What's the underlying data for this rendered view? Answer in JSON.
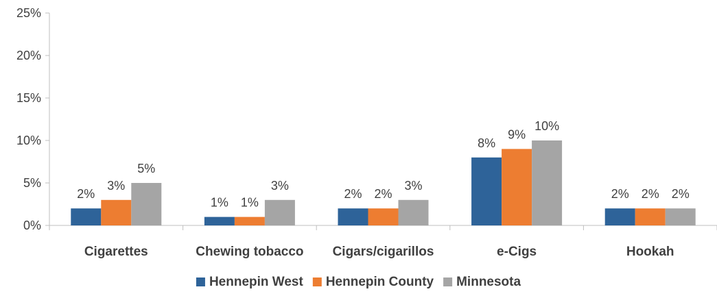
{
  "chart_data": {
    "type": "bar",
    "title": "",
    "xlabel": "",
    "ylabel": "",
    "categories": [
      "Cigarettes",
      "Chewing tobacco",
      "Cigars/cigarillos",
      "e-Cigs",
      "Hookah"
    ],
    "series": [
      {
        "name": "Hennepin West",
        "color": "#2e6399",
        "values": [
          2,
          1,
          2,
          8,
          2
        ],
        "labels": [
          "2%",
          "1%",
          "2%",
          "8%",
          "2%"
        ]
      },
      {
        "name": "Hennepin County",
        "color": "#ed7d31",
        "values": [
          3,
          1,
          2,
          9,
          2
        ],
        "labels": [
          "3%",
          "1%",
          "2%",
          "9%",
          "2%"
        ]
      },
      {
        "name": "Minnesota",
        "color": "#a5a5a5",
        "values": [
          5,
          3,
          3,
          10,
          2
        ],
        "labels": [
          "5%",
          "3%",
          "3%",
          "10%",
          "2%"
        ]
      }
    ],
    "ylim": [
      0,
      25
    ],
    "yticks": [
      "0%",
      "5%",
      "10%",
      "15%",
      "20%",
      "25%"
    ],
    "grid": false,
    "legend_position": "bottom"
  }
}
